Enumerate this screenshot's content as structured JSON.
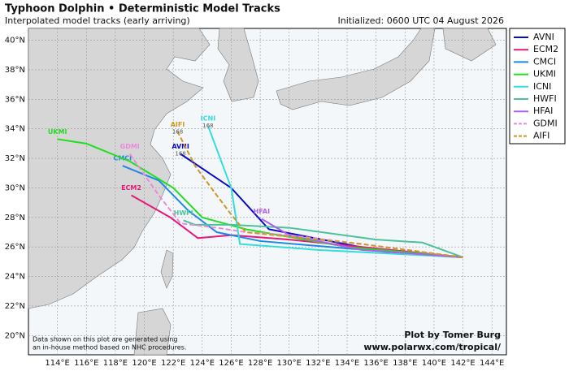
{
  "chart_data": {
    "type": "track-map",
    "title": "Typhoon Dolphin • Deterministic Model Tracks",
    "subtitle": "Interpolated model tracks (early arriving)",
    "initialized": "Initialized: 0600 UTC 04 August 2026",
    "footnote": [
      "Data shown on this plot are generated using",
      "an in-house method based on NHC procedures."
    ],
    "credit": [
      "Plot by Tomer Burg",
      "www.polarwx.com/tropical/"
    ],
    "xlim": [
      112,
      145
    ],
    "ylim": [
      18.7,
      40.8
    ],
    "grid": true,
    "legend": "right",
    "xticks": [
      {
        "value": 114,
        "label": "114°E"
      },
      {
        "value": 116,
        "label": "116°E"
      },
      {
        "value": 118,
        "label": "118°E"
      },
      {
        "value": 120,
        "label": "120°E"
      },
      {
        "value": 122,
        "label": "122°E"
      },
      {
        "value": 124,
        "label": "124°E"
      },
      {
        "value": 126,
        "label": "126°E"
      },
      {
        "value": 128,
        "label": "128°E"
      },
      {
        "value": 130,
        "label": "130°E"
      },
      {
        "value": 132,
        "label": "132°E"
      },
      {
        "value": 134,
        "label": "134°E"
      },
      {
        "value": 136,
        "label": "136°E"
      },
      {
        "value": 138,
        "label": "138°E"
      },
      {
        "value": 140,
        "label": "140°E"
      },
      {
        "value": 142,
        "label": "142°E"
      },
      {
        "value": 144,
        "label": "144°E"
      }
    ],
    "yticks": [
      {
        "value": 20,
        "label": "20°N"
      },
      {
        "value": 22,
        "label": "22°N"
      },
      {
        "value": 24,
        "label": "24°N"
      },
      {
        "value": 26,
        "label": "26°N"
      },
      {
        "value": 28,
        "label": "28°N"
      },
      {
        "value": 30,
        "label": "30°N"
      },
      {
        "value": 32,
        "label": "32°N"
      },
      {
        "value": 34,
        "label": "34°N"
      },
      {
        "value": 36,
        "label": "36°N"
      },
      {
        "value": 38,
        "label": "38°N"
      },
      {
        "value": 40,
        "label": "40°N"
      }
    ],
    "series": [
      {
        "name": "AVNI",
        "color": "#0a0ac8",
        "style": "solid",
        "end_label": "168",
        "x": [
          142,
          137,
          128.6,
          126,
          122.5
        ],
        "values": [
          25.3,
          25.6,
          27.2,
          30,
          32.3
        ]
      },
      {
        "name": "ECM2",
        "color": "#e6197a",
        "style": "solid",
        "x": [
          142,
          136,
          130,
          126,
          123.7,
          121.8,
          119.1
        ],
        "values": [
          25.3,
          25.9,
          26.5,
          26.8,
          26.6,
          28,
          29.5
        ]
      },
      {
        "name": "CMCI",
        "color": "#1e88e5",
        "style": "solid",
        "x": [
          142,
          134,
          128,
          125,
          123,
          121,
          118.5
        ],
        "values": [
          25.3,
          25.9,
          26.4,
          27,
          28.5,
          30.5,
          31.5
        ]
      },
      {
        "name": "UKMI",
        "color": "#22dd22",
        "style": "solid",
        "x": [
          142,
          134,
          127,
          124,
          122,
          119,
          116,
          114
        ],
        "values": [
          25.3,
          26,
          27.2,
          28,
          30,
          31.8,
          33,
          33.3
        ]
      },
      {
        "name": "ICNI",
        "color": "#33dddd",
        "style": "solid",
        "end_label": "168",
        "x": [
          142,
          132,
          126.6,
          126.4,
          126,
          124.4
        ],
        "values": [
          25.3,
          25.8,
          26.2,
          27.5,
          30,
          34.2
        ]
      },
      {
        "name": "HWFI",
        "color": "#4cc29a",
        "style": "solid",
        "x": [
          142,
          139.2,
          136,
          130,
          126,
          123.5,
          122.7
        ],
        "values": [
          25.3,
          26.3,
          26.5,
          27.3,
          27.5,
          27.5,
          27.8
        ]
      },
      {
        "name": "HFAI",
        "color": "#b060e8",
        "style": "solid",
        "x": [
          142,
          135,
          130,
          128.1
        ],
        "values": [
          25.3,
          25.8,
          26.8,
          27.9
        ]
      },
      {
        "name": "GDMI",
        "color": "#ee88dd",
        "style": "dashed",
        "x": [
          142,
          135,
          130,
          127,
          125,
          122.5,
          121,
          119
        ],
        "values": [
          25.3,
          26.2,
          26.8,
          27,
          27.3,
          27.6,
          29.5,
          32.3
        ]
      },
      {
        "name": "AIFI",
        "color": "#cc9922",
        "style": "dashed",
        "end_label": "168",
        "x": [
          142,
          135,
          130,
          127,
          126,
          125,
          123.5,
          122.3
        ],
        "values": [
          25.3,
          26.2,
          26.7,
          27,
          28.2,
          29.5,
          31.5,
          33.8
        ]
      }
    ]
  }
}
